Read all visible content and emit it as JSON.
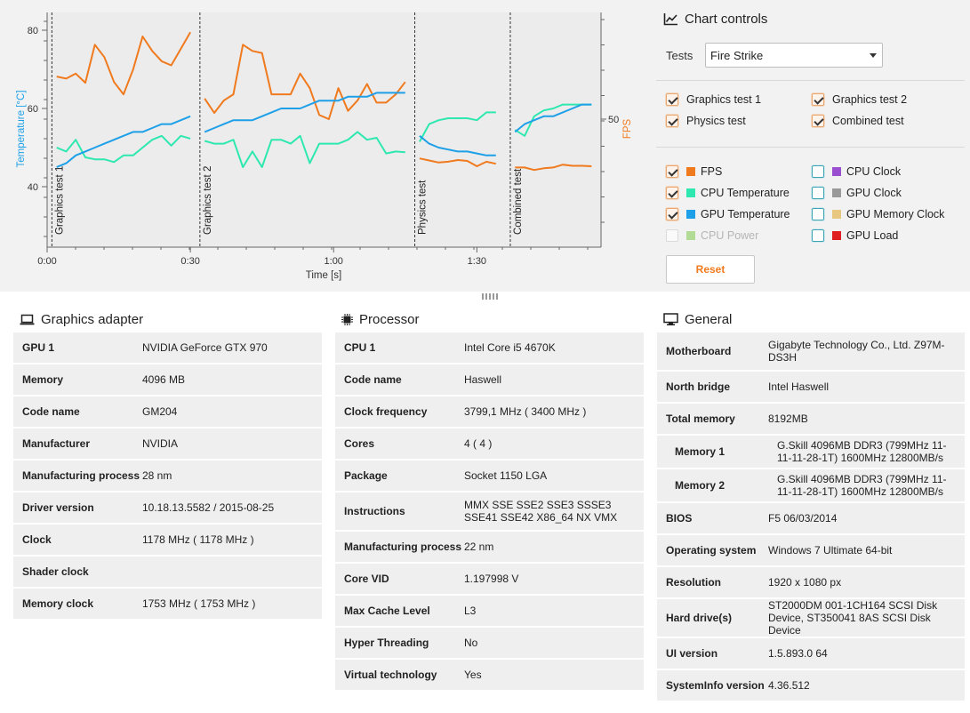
{
  "chart": {
    "temp_axis_label": "Temperature [°C]",
    "fps_axis_label": "FPS",
    "time_axis_label": "Time [s]",
    "temp_ticks": [
      "80",
      "60",
      "40"
    ],
    "fps_ticks": [
      "50"
    ],
    "time_ticks": [
      "0:00",
      "0:30",
      "1:00",
      "1:30"
    ],
    "colors": {
      "fps": "#f07a1e",
      "cpu_temp": "#2ee8b0",
      "gpu_temp": "#1ea0e8"
    }
  },
  "chart_data": {
    "type": "line",
    "x_unit": "seconds",
    "y_left_label": "Temperature [°C]",
    "y_left_range": [
      26,
      84
    ],
    "y_right_label": "FPS",
    "time_range_s": [
      0,
      116
    ],
    "time_ticks_s": [
      0,
      30,
      60,
      90
    ],
    "sections": [
      {
        "label": "Graphics test 1",
        "t": 1
      },
      {
        "label": "Graphics test 2",
        "t": 32
      },
      {
        "label": "Physics test",
        "t": 77
      },
      {
        "label": "Combined test",
        "t": 97
      }
    ],
    "series": [
      {
        "name": "FPS",
        "axis": "right",
        "color": "#f07a1e",
        "segments": [
          [
            [
              2,
              60.3
            ],
            [
              4,
              59.8
            ],
            [
              6,
              61
            ],
            [
              8,
              58.8
            ],
            [
              10,
              68
            ],
            [
              12,
              65
            ],
            [
              14,
              59
            ],
            [
              16,
              56
            ],
            [
              18,
              62
            ],
            [
              20,
              70
            ],
            [
              22,
              66.5
            ],
            [
              24,
              64
            ],
            [
              26,
              63
            ],
            [
              28,
              67
            ],
            [
              30,
              71
            ]
          ],
          [
            [
              33,
              55
            ],
            [
              35,
              51.5
            ],
            [
              37,
              54.5
            ],
            [
              39,
              56
            ],
            [
              41,
              68
            ],
            [
              43,
              66.5
            ],
            [
              45,
              66
            ],
            [
              47,
              56
            ],
            [
              49,
              56
            ],
            [
              51,
              56
            ],
            [
              53,
              61
            ],
            [
              55,
              57.5
            ],
            [
              57,
              51
            ],
            [
              59,
              50
            ],
            [
              61,
              57.5
            ],
            [
              63,
              52
            ],
            [
              65,
              54.5
            ],
            [
              67,
              58.5
            ],
            [
              69,
              54
            ],
            [
              71,
              54
            ],
            [
              73,
              56
            ],
            [
              75,
              59
            ]
          ],
          [
            [
              78,
              40.5
            ],
            [
              80,
              40
            ],
            [
              82,
              39.5
            ],
            [
              84,
              39.7
            ],
            [
              86,
              40.1
            ],
            [
              88,
              39.9
            ],
            [
              90,
              38.6
            ],
            [
              92,
              39.7
            ],
            [
              94,
              39.2
            ]
          ],
          [
            [
              98,
              38.3
            ],
            [
              100,
              38.3
            ],
            [
              102,
              37.7
            ],
            [
              104,
              38.1
            ],
            [
              106,
              38.3
            ],
            [
              108,
              39
            ],
            [
              110,
              38.7
            ],
            [
              112,
              38.7
            ],
            [
              114,
              38.6
            ]
          ]
        ]
      },
      {
        "name": "CPU Temperature",
        "axis": "left",
        "color": "#2ee8b0",
        "segments": [
          [
            [
              2,
              50
            ],
            [
              4,
              49
            ],
            [
              6,
              52
            ],
            [
              8,
              47.5
            ],
            [
              10,
              47
            ],
            [
              12,
              47
            ],
            [
              14,
              46.3
            ],
            [
              16,
              48
            ],
            [
              18,
              48
            ],
            [
              20,
              50
            ],
            [
              22,
              52
            ],
            [
              24,
              53
            ],
            [
              26,
              50.5
            ],
            [
              28,
              53
            ],
            [
              30,
              52.3
            ]
          ],
          [
            [
              33,
              51.7
            ],
            [
              35,
              51
            ],
            [
              37,
              51
            ],
            [
              39,
              52
            ],
            [
              41,
              45
            ],
            [
              43,
              49
            ],
            [
              45,
              45
            ],
            [
              47,
              52
            ],
            [
              49,
              52
            ],
            [
              51,
              51
            ],
            [
              53,
              53
            ],
            [
              55,
              46
            ],
            [
              57,
              51
            ],
            [
              59,
              51
            ],
            [
              61,
              51
            ],
            [
              63,
              52
            ],
            [
              65,
              54
            ],
            [
              67,
              52
            ],
            [
              69,
              52.5
            ],
            [
              71,
              48.5
            ],
            [
              73,
              49
            ],
            [
              75,
              48.8
            ]
          ],
          [
            [
              78,
              51.5
            ],
            [
              80,
              56
            ],
            [
              82,
              57
            ],
            [
              84,
              57.5
            ],
            [
              86,
              57.5
            ],
            [
              88,
              57.5
            ],
            [
              90,
              57
            ],
            [
              92,
              59
            ],
            [
              94,
              59
            ]
          ],
          [
            [
              98,
              54.5
            ],
            [
              100,
              53
            ],
            [
              102,
              58
            ],
            [
              104,
              59.5
            ],
            [
              106,
              60
            ],
            [
              108,
              61
            ],
            [
              110,
              61
            ],
            [
              112,
              61
            ],
            [
              114,
              61
            ]
          ]
        ]
      },
      {
        "name": "GPU Temperature",
        "axis": "left",
        "color": "#1ea0e8",
        "segments": [
          [
            [
              2,
              45
            ],
            [
              4,
              46
            ],
            [
              6,
              48
            ],
            [
              8,
              49
            ],
            [
              10,
              50
            ],
            [
              12,
              51
            ],
            [
              14,
              52
            ],
            [
              16,
              53
            ],
            [
              18,
              54
            ],
            [
              20,
              54
            ],
            [
              22,
              55
            ],
            [
              24,
              56
            ],
            [
              26,
              56
            ],
            [
              28,
              57
            ],
            [
              30,
              58
            ]
          ],
          [
            [
              33,
              54
            ],
            [
              35,
              55
            ],
            [
              37,
              56
            ],
            [
              39,
              57
            ],
            [
              41,
              57
            ],
            [
              43,
              57
            ],
            [
              45,
              58
            ],
            [
              47,
              59
            ],
            [
              49,
              60
            ],
            [
              51,
              60
            ],
            [
              53,
              60
            ],
            [
              55,
              61
            ],
            [
              57,
              62
            ],
            [
              59,
              62
            ],
            [
              61,
              62
            ],
            [
              63,
              63
            ],
            [
              65,
              63
            ],
            [
              67,
              63
            ],
            [
              69,
              64
            ],
            [
              71,
              64
            ],
            [
              73,
              64
            ],
            [
              75,
              64
            ]
          ],
          [
            [
              78,
              53
            ],
            [
              80,
              51
            ],
            [
              82,
              50
            ],
            [
              84,
              49.5
            ],
            [
              86,
              49
            ],
            [
              88,
              49
            ],
            [
              90,
              48.5
            ],
            [
              92,
              48
            ],
            [
              94,
              48
            ]
          ],
          [
            [
              98,
              54
            ],
            [
              100,
              56
            ],
            [
              102,
              57
            ],
            [
              104,
              58
            ],
            [
              106,
              58
            ],
            [
              108,
              59
            ],
            [
              110,
              60
            ],
            [
              112,
              61
            ],
            [
              114,
              61
            ]
          ]
        ]
      }
    ]
  },
  "controls": {
    "title": "Chart controls",
    "tests_label": "Tests",
    "tests_selected": "Fire Strike",
    "tests": [
      {
        "label": "Graphics test 1",
        "checked": true
      },
      {
        "label": "Graphics test 2",
        "checked": true
      },
      {
        "label": "Physics test",
        "checked": true
      },
      {
        "label": "Combined test",
        "checked": true
      }
    ],
    "series": [
      {
        "label": "FPS",
        "color": "#f07a1e",
        "checked": true,
        "enabled": true
      },
      {
        "label": "CPU Clock",
        "color": "#9a4fd1",
        "checked": false,
        "enabled": true
      },
      {
        "label": "CPU Temperature",
        "color": "#2ee8b0",
        "checked": true,
        "enabled": true
      },
      {
        "label": "GPU Clock",
        "color": "#999999",
        "checked": false,
        "enabled": true
      },
      {
        "label": "GPU Temperature",
        "color": "#1ea0e8",
        "checked": true,
        "enabled": true
      },
      {
        "label": "GPU Memory Clock",
        "color": "#e8c880",
        "checked": false,
        "enabled": true
      },
      {
        "label": "CPU Power",
        "color": "#72c53a",
        "checked": false,
        "enabled": false
      },
      {
        "label": "GPU Load",
        "color": "#e02020",
        "checked": false,
        "enabled": true
      }
    ],
    "reset_label": "Reset"
  },
  "graphics_adapter": {
    "title": "Graphics adapter",
    "rows": [
      {
        "key": "GPU 1",
        "value": "NVIDIA GeForce GTX 970"
      },
      {
        "key": "Memory",
        "value": "4096 MB"
      },
      {
        "key": "Code name",
        "value": "GM204"
      },
      {
        "key": "Manufacturer",
        "value": "NVIDIA"
      },
      {
        "key": "Manufacturing process",
        "value": "28 nm"
      },
      {
        "key": "Driver version",
        "value": "10.18.13.5582 / 2015-08-25"
      },
      {
        "key": "Clock",
        "value": "1178 MHz ( 1178 MHz )"
      },
      {
        "key": "Shader clock",
        "value": ""
      },
      {
        "key": "Memory clock",
        "value": "1753 MHz ( 1753 MHz )"
      }
    ]
  },
  "processor": {
    "title": "Processor",
    "rows": [
      {
        "key": "CPU 1",
        "value": "Intel Core i5 4670K"
      },
      {
        "key": "Code name",
        "value": "Haswell"
      },
      {
        "key": "Clock frequency",
        "value": "3799,1 MHz ( 3400 MHz )"
      },
      {
        "key": "Cores",
        "value": "4 ( 4 )"
      },
      {
        "key": "Package",
        "value": "Socket 1150 LGA"
      },
      {
        "key": "Instructions",
        "value": "MMX SSE SSE2 SSE3 SSSE3 SSE41 SSE42 X86_64 NX VMX"
      },
      {
        "key": "Manufacturing process",
        "value": "22 nm"
      },
      {
        "key": "Core VID",
        "value": "1.197998 V"
      },
      {
        "key": "Max Cache Level",
        "value": "L3"
      },
      {
        "key": "Hyper Threading",
        "value": "No"
      },
      {
        "key": "Virtual technology",
        "value": "Yes"
      }
    ]
  },
  "general": {
    "title": "General",
    "rows": [
      {
        "key": "Motherboard",
        "value": "Gigabyte Technology Co., Ltd. Z97M-DS3H"
      },
      {
        "key": "North bridge",
        "value": "Intel Haswell"
      },
      {
        "key": "Total memory",
        "value": "8192MB"
      },
      {
        "key": "Memory 1",
        "value": "G.Skill 4096MB  DDR3 (799MHz 11-11-11-28-1T) 1600MHz 12800MB/s",
        "sub": true
      },
      {
        "key": "Memory 2",
        "value": "G.Skill 4096MB  DDR3 (799MHz 11-11-11-28-1T) 1600MHz 12800MB/s",
        "sub": true
      },
      {
        "key": "BIOS",
        "value": "F5 06/03/2014"
      },
      {
        "key": "Operating system",
        "value": "Windows 7 Ultimate 64-bit"
      },
      {
        "key": "Resolution",
        "value": "1920 x 1080 px"
      },
      {
        "key": "Hard drive(s)",
        "value": "ST2000DM 001-1CH164 SCSI Disk Device, ST350041 8AS SCSI Disk Device"
      },
      {
        "key": "UI version",
        "value": "1.5.893.0 64"
      },
      {
        "key": "SystemInfo version",
        "value": "4.36.512"
      }
    ]
  }
}
